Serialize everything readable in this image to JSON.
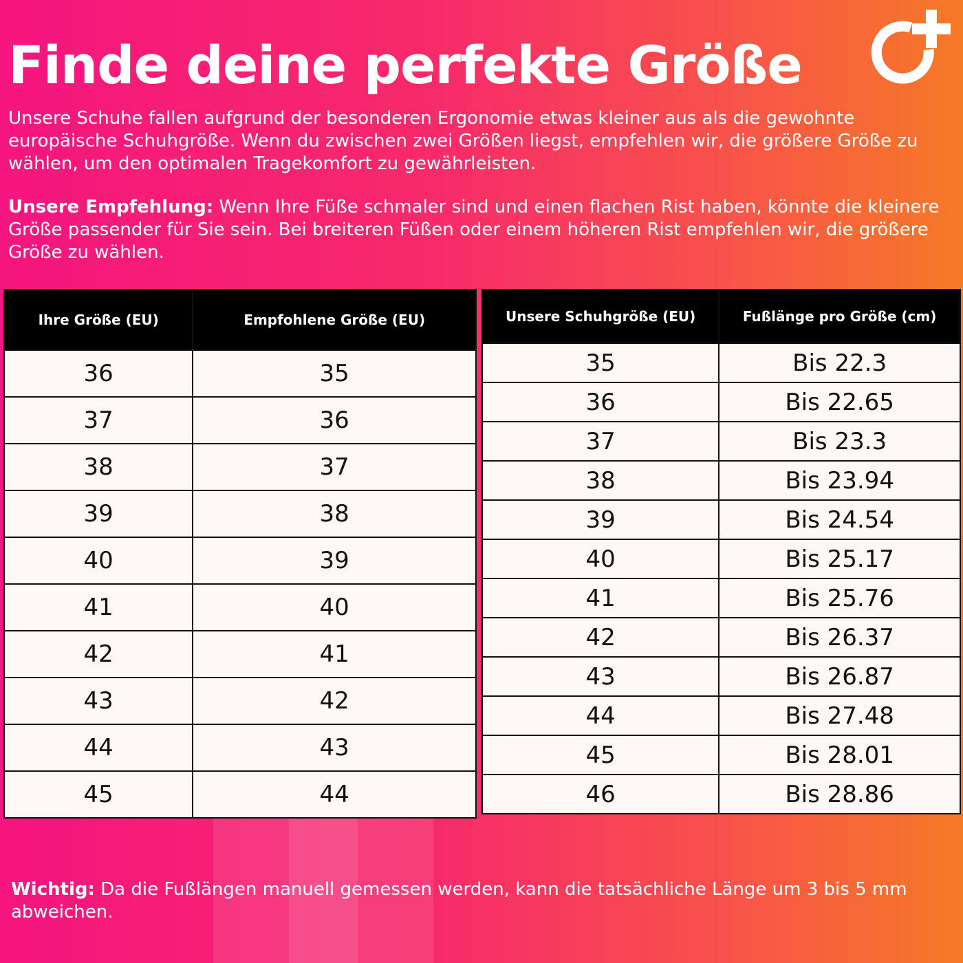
{
  "title": "Finde deine perfekte Größe",
  "intro": "Unsere Schuhe fallen aufgrund der besonderen Ergonomie etwas kleiner aus als die gewohnte europäische Schuhgröße. Wenn du zwischen zwei Größen liegst, empfehlen wir, die größere Größe zu wählen, um den optimalen Tragekomfort zu gewährleisten.",
  "recommendation": {
    "label": "Unsere Empfehlung:",
    "text": " Wenn Ihre Füße schmaler sind und einen flachen Rist haben, könnte die kleinere Größe passender für Sie sein. Bei breiteren Füßen oder einem höheren Rist empfehlen wir, die größere Größe zu wählen."
  },
  "conversion_table": {
    "headers": [
      "Ihre Größe (EU)",
      "Empfohlene Größe (EU)"
    ],
    "rows": [
      [
        "36",
        "35"
      ],
      [
        "37",
        "36"
      ],
      [
        "38",
        "37"
      ],
      [
        "39",
        "38"
      ],
      [
        "40",
        "39"
      ],
      [
        "41",
        "40"
      ],
      [
        "42",
        "41"
      ],
      [
        "43",
        "42"
      ],
      [
        "44",
        "43"
      ],
      [
        "45",
        "44"
      ]
    ]
  },
  "length_table": {
    "headers": [
      "Unsere Schuhgröße (EU)",
      "Fußlänge pro Größe (cm)"
    ],
    "rows": [
      [
        "35",
        "Bis 22.3"
      ],
      [
        "36",
        "Bis 22.65"
      ],
      [
        "37",
        "Bis 23.3"
      ],
      [
        "38",
        "Bis 23.94"
      ],
      [
        "39",
        "Bis 24.54"
      ],
      [
        "40",
        "Bis 25.17"
      ],
      [
        "41",
        "Bis 25.76"
      ],
      [
        "42",
        "Bis 26.37"
      ],
      [
        "43",
        "Bis 26.87"
      ],
      [
        "44",
        "Bis 27.48"
      ],
      [
        "45",
        "Bis 28.01"
      ],
      [
        "46",
        "Bis 28.86"
      ]
    ]
  },
  "note": {
    "label": "Wichtig:",
    "text": " Da die Fußlängen manuell gemessen werden, kann die tatsächliche Länge um 3 bis 5 mm abweichen."
  },
  "colors": {
    "gradient_start": "#f5157f",
    "gradient_end": "#f67a26",
    "header_bg": "#000000",
    "cell_bg": "#fdf8f5"
  },
  "logo_icon": "circle-plus-logo"
}
